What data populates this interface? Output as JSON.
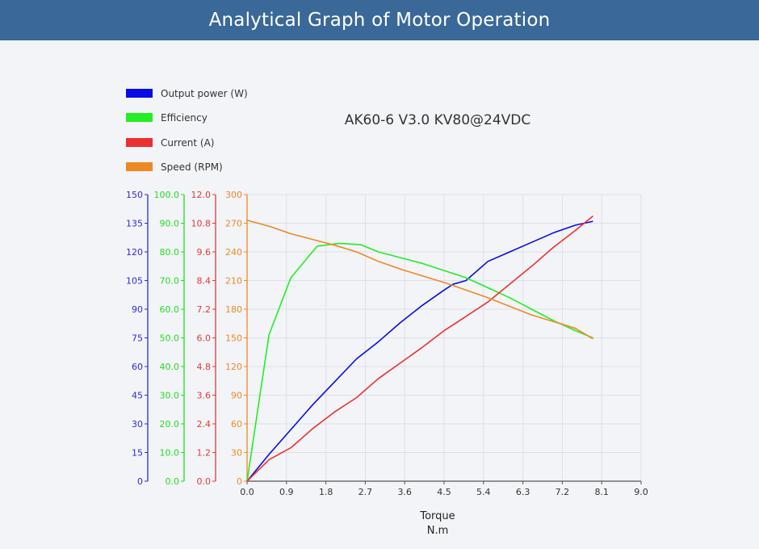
{
  "header": {
    "title": "Analytical Graph of Motor Operation"
  },
  "chart_data": {
    "type": "line",
    "title": "AK60-6 V3.0 KV80@24VDC",
    "xlabel": "Torque",
    "xunit": "N.m",
    "xlim": [
      0,
      9.0
    ],
    "x_ticks": [
      "0.0",
      "0.9",
      "1.8",
      "2.7",
      "3.6",
      "4.5",
      "5.4",
      "6.3",
      "7.2",
      "8.1",
      "9.0"
    ],
    "grid": true,
    "legend_position": "top-left",
    "axes": [
      {
        "id": "power",
        "color": "#2b2bd6",
        "range": [
          0,
          150
        ],
        "ticks": [
          "0",
          "15",
          "30",
          "45",
          "60",
          "75",
          "90",
          "105",
          "120",
          "135",
          "150"
        ]
      },
      {
        "id": "efficiency",
        "color": "#22dd22",
        "range": [
          0,
          100
        ],
        "ticks": [
          "0.0",
          "10.0",
          "20.0",
          "30.0",
          "40.0",
          "50.0",
          "60.0",
          "70.0",
          "80.0",
          "90.0",
          "100.0"
        ]
      },
      {
        "id": "current",
        "color": "#e03a3a",
        "range": [
          0,
          12
        ],
        "ticks": [
          "0.0",
          "1.2",
          "2.4",
          "3.6",
          "4.8",
          "6.0",
          "7.2",
          "8.4",
          "9.6",
          "10.8",
          "12.0"
        ]
      },
      {
        "id": "speed",
        "color": "#ee8822",
        "range": [
          0,
          300
        ],
        "ticks": [
          "0",
          "30",
          "60",
          "90",
          "120",
          "150",
          "180",
          "210",
          "240",
          "270",
          "300"
        ]
      }
    ],
    "series": [
      {
        "name": "Output power (W)",
        "axis": "power",
        "color": "#0a0ae6",
        "x": [
          0.0,
          0.5,
          1.0,
          1.5,
          2.0,
          2.5,
          3.0,
          3.5,
          4.0,
          4.5,
          4.7,
          5.0,
          5.5,
          6.0,
          6.5,
          7.0,
          7.5,
          7.9
        ],
        "y": [
          0,
          14,
          27,
          40,
          52,
          64,
          73,
          83,
          92,
          100,
          103,
          105,
          115,
          120,
          125,
          130,
          134,
          136
        ]
      },
      {
        "name": "Efficiency",
        "axis": "efficiency",
        "color": "#22ee22",
        "x": [
          0.0,
          0.5,
          1.0,
          1.6,
          2.1,
          2.6,
          3.0,
          3.5,
          4.0,
          4.6,
          5.0,
          5.5,
          6.0,
          6.5,
          7.0,
          7.5,
          7.9
        ],
        "y": [
          0,
          51,
          71,
          82,
          83,
          82.5,
          80,
          78,
          76,
          73,
          71,
          67.5,
          64,
          60,
          56,
          52.5,
          50
        ]
      },
      {
        "name": "Current (A)",
        "axis": "current",
        "color": "#ec3030",
        "x": [
          0.0,
          0.5,
          1.0,
          1.5,
          2.0,
          2.5,
          3.0,
          3.5,
          4.0,
          4.5,
          5.0,
          5.5,
          6.0,
          6.5,
          7.0,
          7.5,
          7.9
        ],
        "y": [
          0,
          0.9,
          1.4,
          2.2,
          2.9,
          3.5,
          4.3,
          4.95,
          5.6,
          6.3,
          6.9,
          7.5,
          8.25,
          9.0,
          9.8,
          10.5,
          11.1
        ]
      },
      {
        "name": "Speed (RPM)",
        "axis": "speed",
        "color": "#ee8822",
        "x": [
          0.0,
          0.5,
          1.0,
          1.5,
          2.0,
          2.5,
          3.0,
          3.5,
          4.0,
          4.5,
          5.0,
          5.5,
          6.0,
          6.5,
          7.0,
          7.5,
          7.9
        ],
        "y": [
          273,
          267,
          259,
          253,
          247,
          240,
          230,
          222,
          215,
          208,
          200,
          192,
          183,
          174,
          167,
          160,
          149
        ]
      }
    ]
  }
}
